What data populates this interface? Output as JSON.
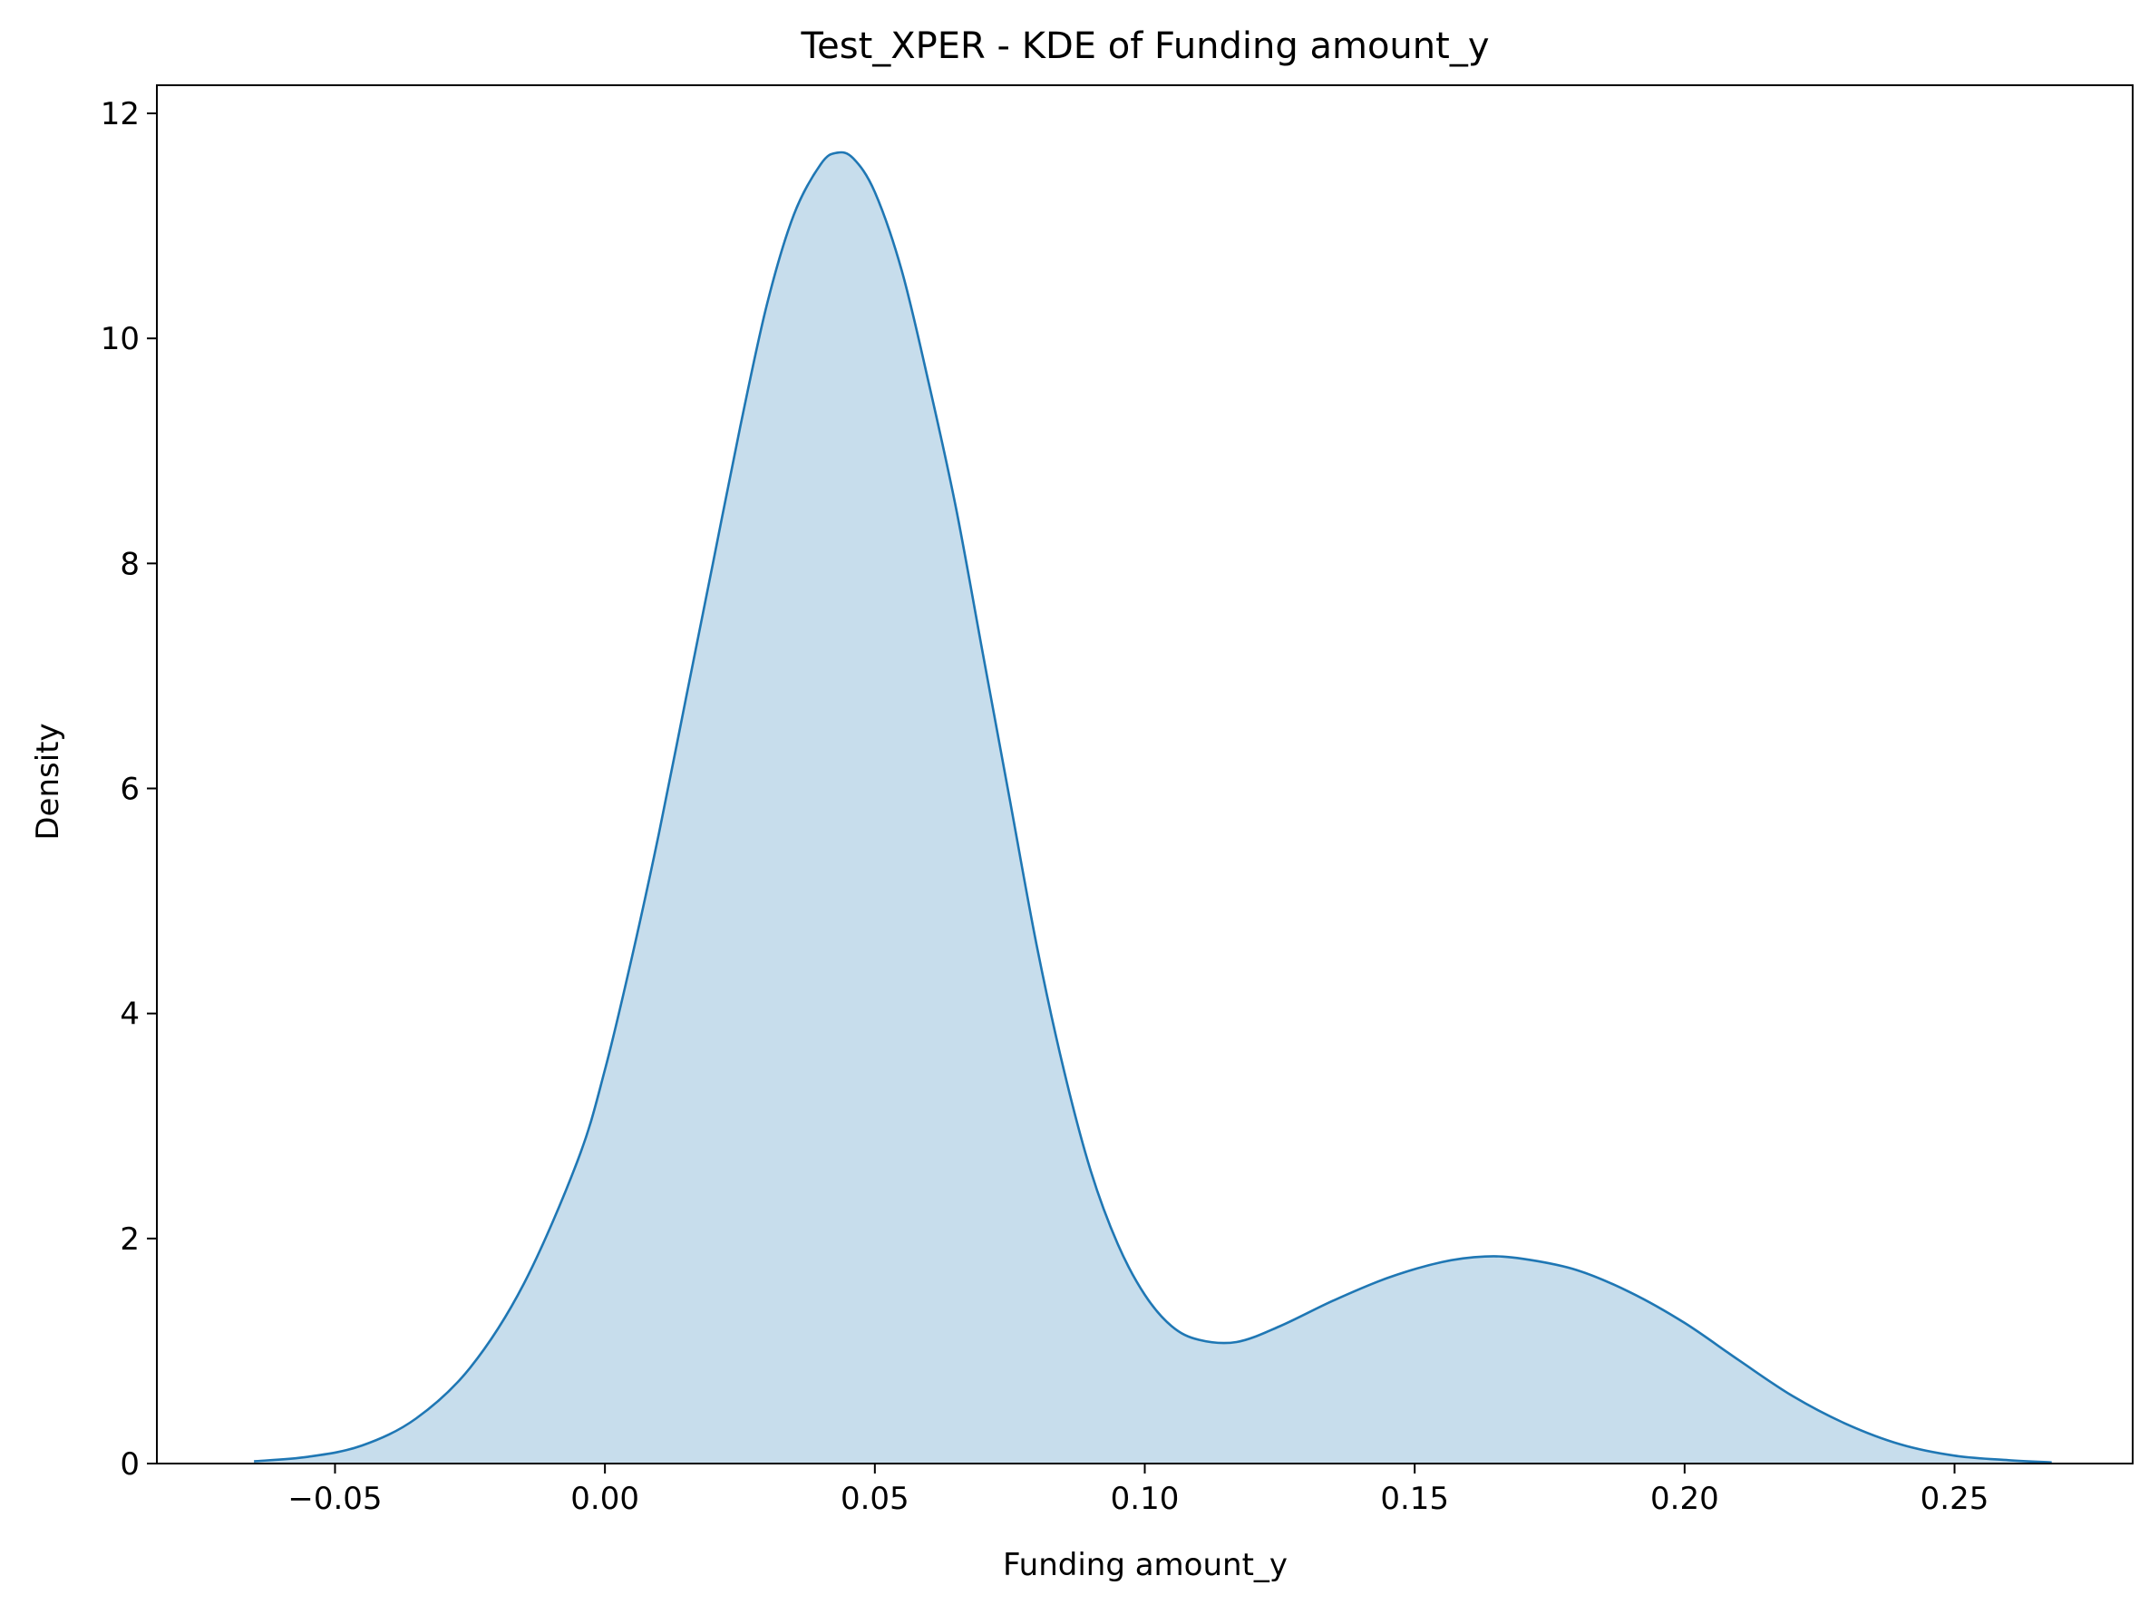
{
  "chart_data": {
    "type": "area",
    "title": "Test_XPER - KDE of Funding amount_y",
    "xlabel": "Funding amount_y",
    "ylabel": "Density",
    "xlim": [
      -0.083,
      0.283
    ],
    "ylim": [
      0,
      12.25
    ],
    "xticks": [
      -0.05,
      0.0,
      0.05,
      0.1,
      0.15,
      0.2,
      0.25
    ],
    "xtick_labels": [
      "−0.05",
      "0.00",
      "0.05",
      "0.10",
      "0.15",
      "0.20",
      "0.25"
    ],
    "yticks": [
      0,
      2,
      4,
      6,
      8,
      10,
      12
    ],
    "ytick_labels": [
      "0",
      "2",
      "4",
      "6",
      "8",
      "10",
      "12"
    ],
    "grid": false,
    "series": [
      {
        "color": "#1f77b4",
        "fill_color": "#1f77b4",
        "fill_opacity": 0.25,
        "x": [
          -0.065,
          -0.055,
          -0.045,
          -0.035,
          -0.025,
          -0.015,
          -0.005,
          0.0,
          0.005,
          0.01,
          0.015,
          0.02,
          0.025,
          0.03,
          0.035,
          0.04,
          0.043,
          0.046,
          0.05,
          0.055,
          0.06,
          0.065,
          0.07,
          0.075,
          0.08,
          0.085,
          0.09,
          0.095,
          0.1,
          0.105,
          0.11,
          0.117,
          0.125,
          0.135,
          0.145,
          0.155,
          0.163,
          0.17,
          0.18,
          0.19,
          0.2,
          0.21,
          0.22,
          0.23,
          0.24,
          0.25,
          0.26,
          0.268
        ],
        "y": [
          0.02,
          0.06,
          0.16,
          0.4,
          0.85,
          1.6,
          2.7,
          3.5,
          4.5,
          5.6,
          6.8,
          8.0,
          9.2,
          10.3,
          11.1,
          11.55,
          11.65,
          11.6,
          11.3,
          10.6,
          9.6,
          8.5,
          7.2,
          5.9,
          4.6,
          3.5,
          2.6,
          1.95,
          1.5,
          1.22,
          1.1,
          1.08,
          1.22,
          1.45,
          1.65,
          1.79,
          1.84,
          1.82,
          1.72,
          1.52,
          1.25,
          0.92,
          0.6,
          0.35,
          0.17,
          0.07,
          0.03,
          0.01
        ]
      }
    ]
  }
}
